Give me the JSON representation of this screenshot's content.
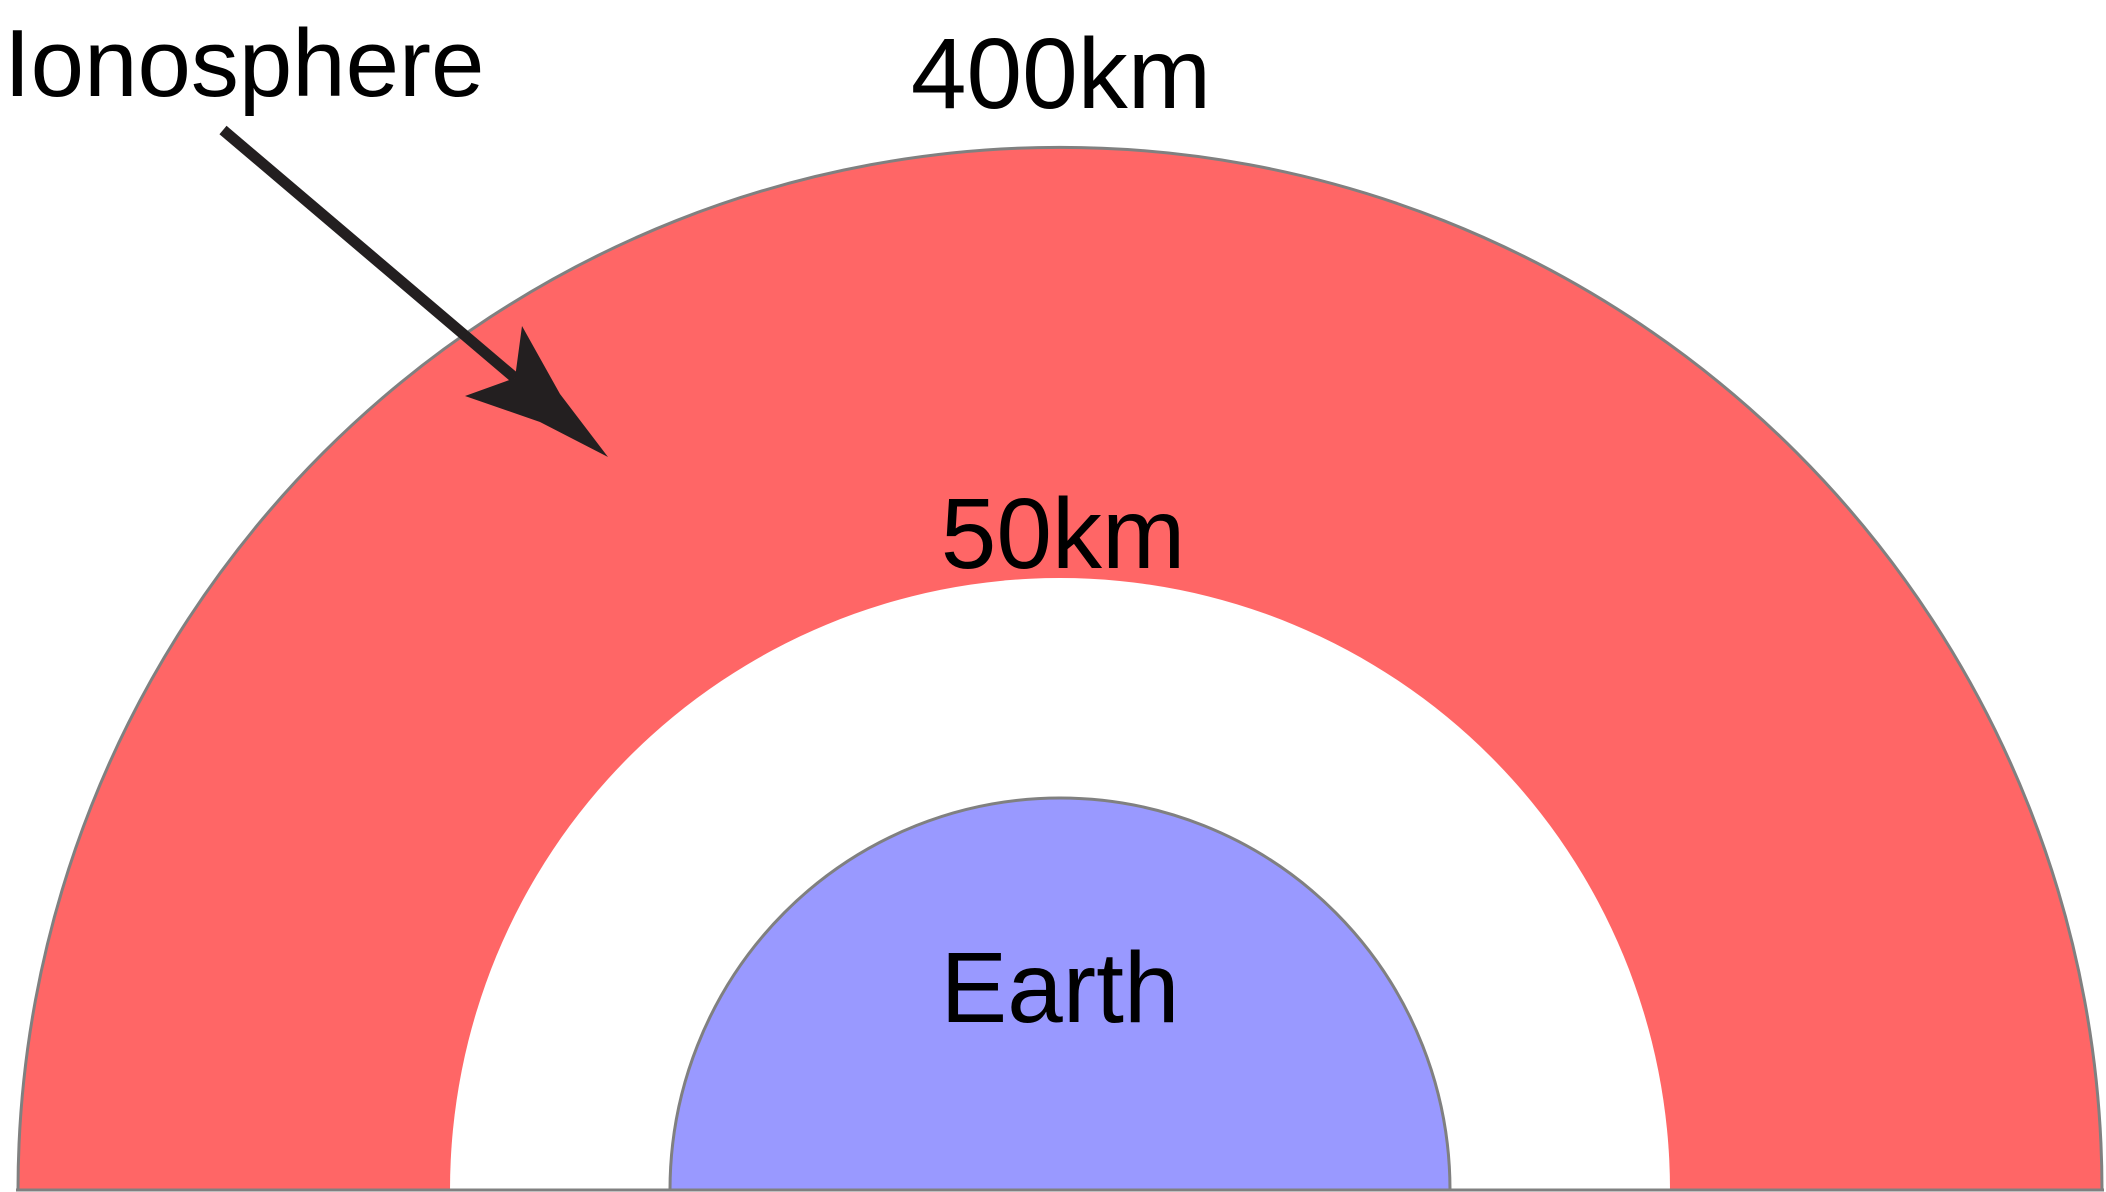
{
  "diagram": {
    "colors": {
      "ionosphere_fill": "#ff6666",
      "earth_fill": "#9999ff",
      "gap_fill": "#ffffff",
      "outline": "#808080",
      "arrow": "#231f20"
    },
    "labels": {
      "ionosphere": "Ionosphere",
      "outer_altitude": "400km",
      "inner_altitude": "50km",
      "earth": "Earth"
    }
  }
}
